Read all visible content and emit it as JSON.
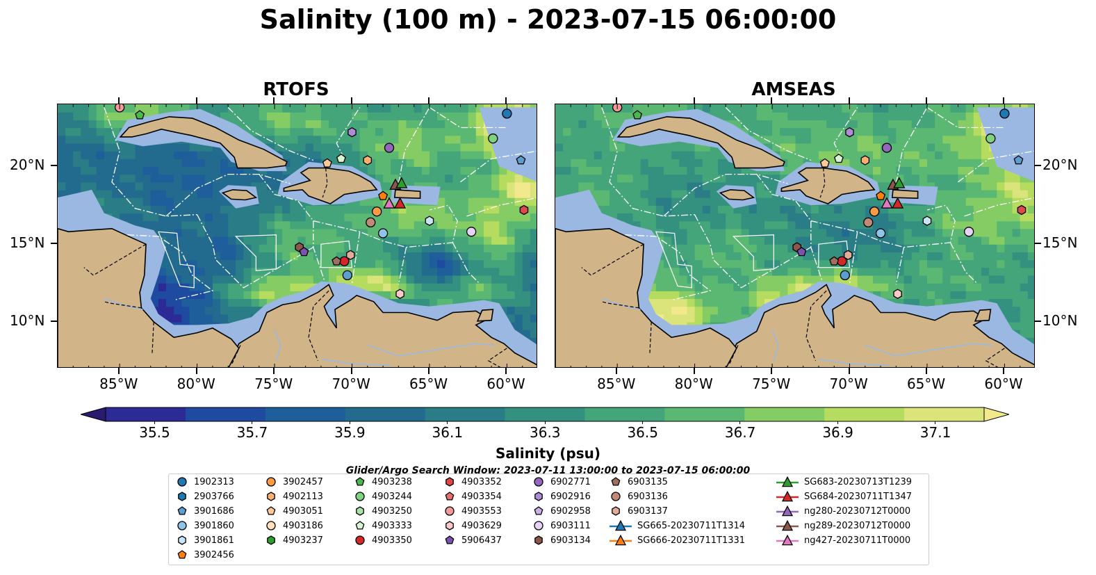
{
  "title": "Salinity (100 m) - 2023-07-15 06:00:00",
  "panels": [
    {
      "title": "RTOFS",
      "style": "rtofs"
    },
    {
      "title": "AMSEAS",
      "style": "amseas"
    }
  ],
  "axes": {
    "lon_ticks": [
      "85°W",
      "80°W",
      "75°W",
      "70°W",
      "65°W",
      "60°W"
    ],
    "lat_ticks": [
      "20°N",
      "15°N",
      "10°N"
    ],
    "lon_range": [
      -89,
      -58
    ],
    "lat_range": [
      7,
      24
    ]
  },
  "colorbar": {
    "label": "Salinity (psu)",
    "ticks": [
      "35.5",
      "35.7",
      "35.9",
      "36.1",
      "36.3",
      "36.5",
      "36.7",
      "36.9",
      "37.1"
    ],
    "range": [
      35.4,
      37.2
    ],
    "colors": [
      "#2a1b6e",
      "#2c2a94",
      "#1e4aa0",
      "#1e5e9a",
      "#236b8e",
      "#2a7d86",
      "#34907f",
      "#44a57a",
      "#5bb872",
      "#84cc63",
      "#b5dc5e",
      "#dae47a",
      "#f2e98c"
    ]
  },
  "legend": {
    "title": "Glider/Argo Search Window: 2023-07-11 13:00:00 to 2023-07-15 06:00:00",
    "columns": [
      [
        {
          "label": "1902313",
          "shape": "circle",
          "color": "#1f77b4"
        },
        {
          "label": "2903766",
          "shape": "hexagon",
          "color": "#1f77b4"
        },
        {
          "label": "3901686",
          "shape": "pentagon",
          "color": "#5a9fd0"
        },
        {
          "label": "3901860",
          "shape": "circle",
          "color": "#8ec3ea"
        },
        {
          "label": "3901861",
          "shape": "hexagon",
          "color": "#c8e4f7"
        },
        {
          "label": "3902456",
          "shape": "pentagon",
          "color": "#ff7f0e"
        }
      ],
      [
        {
          "label": "3902457",
          "shape": "circle",
          "color": "#ff9a45"
        },
        {
          "label": "4902113",
          "shape": "hexagon",
          "color": "#ffb070"
        },
        {
          "label": "4903051",
          "shape": "pentagon",
          "color": "#ffc898"
        },
        {
          "label": "4903186",
          "shape": "circle",
          "color": "#ffe0c0"
        },
        {
          "label": "4903237",
          "shape": "hexagon",
          "color": "#2ca02c"
        }
      ],
      [
        {
          "label": "4903238",
          "shape": "pentagon",
          "color": "#4cb84c"
        },
        {
          "label": "4903244",
          "shape": "circle",
          "color": "#7fd27f"
        },
        {
          "label": "4903250",
          "shape": "hexagon",
          "color": "#a8e4a8"
        },
        {
          "label": "4903333",
          "shape": "pentagon",
          "color": "#d6f5d0"
        },
        {
          "label": "4903350",
          "shape": "circle",
          "color": "#d62728"
        }
      ],
      [
        {
          "label": "4903352",
          "shape": "hexagon",
          "color": "#e04848"
        },
        {
          "label": "4903354",
          "shape": "pentagon",
          "color": "#ea6f6f"
        },
        {
          "label": "4903553",
          "shape": "circle",
          "color": "#f49a9a"
        },
        {
          "label": "4903629",
          "shape": "hexagon",
          "color": "#fcc8c8"
        },
        {
          "label": "5906437",
          "shape": "pentagon",
          "color": "#7b52b0"
        }
      ],
      [
        {
          "label": "6902771",
          "shape": "circle",
          "color": "#9467bd"
        },
        {
          "label": "6902916",
          "shape": "hexagon",
          "color": "#b08cd6"
        },
        {
          "label": "6902958",
          "shape": "pentagon",
          "color": "#cbb0e8"
        },
        {
          "label": "6903111",
          "shape": "circle",
          "color": "#e6d3f7"
        },
        {
          "label": "6903134",
          "shape": "hexagon",
          "color": "#8c564b"
        }
      ],
      [
        {
          "label": "6903135",
          "shape": "pentagon",
          "color": "#a0705f"
        },
        {
          "label": "6903136",
          "shape": "circle",
          "color": "#c08a78"
        },
        {
          "label": "6903137",
          "shape": "hexagon",
          "color": "#e2ad98"
        },
        {
          "label": "SG665-20230711T1314",
          "shape": "triangle-line",
          "color": "#1f77b4"
        },
        {
          "label": "SG666-20230711T1331",
          "shape": "triangle-line",
          "color": "#ff7f0e"
        }
      ],
      [
        {
          "label": "SG683-20230713T1239",
          "shape": "triangle-line",
          "color": "#2ca02c"
        },
        {
          "label": "SG684-20230711T1347",
          "shape": "triangle-line",
          "color": "#d62728"
        },
        {
          "label": "ng280-20230712T0000",
          "shape": "triangle-line",
          "color": "#9467bd"
        },
        {
          "label": "ng289-20230712T0000",
          "shape": "triangle-line",
          "color": "#8c564b"
        },
        {
          "label": "ng427-20230711T0000",
          "shape": "triangle-line",
          "color": "#e377c2"
        }
      ]
    ]
  },
  "observations": [
    {
      "lon": -85.0,
      "lat": 23.8,
      "shape": "circle",
      "color": "#f49a9a"
    },
    {
      "lon": -83.7,
      "lat": 23.3,
      "shape": "pentagon",
      "color": "#4cb84c"
    },
    {
      "lon": -60.0,
      "lat": 23.4,
      "shape": "circle",
      "color": "#1f77b4"
    },
    {
      "lon": -59.1,
      "lat": 20.4,
      "shape": "pentagon",
      "color": "#5a9fd0"
    },
    {
      "lon": -60.9,
      "lat": 21.8,
      "shape": "circle",
      "color": "#7fd27f"
    },
    {
      "lon": -70.0,
      "lat": 22.2,
      "shape": "hexagon",
      "color": "#b08cd6"
    },
    {
      "lon": -67.6,
      "lat": 21.2,
      "shape": "circle",
      "color": "#9467bd"
    },
    {
      "lon": -70.7,
      "lat": 20.5,
      "shape": "pentagon",
      "color": "#d6f5d0"
    },
    {
      "lon": -69.0,
      "lat": 20.4,
      "shape": "hexagon",
      "color": "#ffb070"
    },
    {
      "lon": -71.6,
      "lat": 20.2,
      "shape": "pentagon",
      "color": "#ffc898"
    },
    {
      "lon": -68.0,
      "lat": 18.1,
      "shape": "pentagon",
      "color": "#ff7f0e"
    },
    {
      "lon": -68.4,
      "lat": 17.1,
      "shape": "circle",
      "color": "#ff9a45"
    },
    {
      "lon": -67.2,
      "lat": 18.8,
      "shape": "triangle",
      "color": "#8c564b"
    },
    {
      "lon": -66.8,
      "lat": 18.9,
      "shape": "triangle",
      "color": "#2ca02c"
    },
    {
      "lon": -67.6,
      "lat": 17.6,
      "shape": "triangle",
      "color": "#e377c2"
    },
    {
      "lon": -66.9,
      "lat": 17.6,
      "shape": "triangle",
      "color": "#d62728"
    },
    {
      "lon": -65.0,
      "lat": 16.5,
      "shape": "hexagon",
      "color": "#c8e4f7"
    },
    {
      "lon": -68.8,
      "lat": 16.4,
      "shape": "circle",
      "color": "#c08a78"
    },
    {
      "lon": -68.0,
      "lat": 15.7,
      "shape": "circle",
      "color": "#8ec3ea"
    },
    {
      "lon": -58.9,
      "lat": 17.2,
      "shape": "hexagon",
      "color": "#e04848"
    },
    {
      "lon": -62.3,
      "lat": 15.8,
      "shape": "circle",
      "color": "#e6d3f7"
    },
    {
      "lon": -73.4,
      "lat": 14.8,
      "shape": "hexagon",
      "color": "#8c564b"
    },
    {
      "lon": -73.1,
      "lat": 14.5,
      "shape": "pentagon",
      "color": "#7b52b0"
    },
    {
      "lon": -70.1,
      "lat": 14.3,
      "shape": "hexagon",
      "color": "#e2ad98"
    },
    {
      "lon": -70.5,
      "lat": 13.9,
      "shape": "circle",
      "color": "#d62728"
    },
    {
      "lon": -71.0,
      "lat": 13.9,
      "shape": "pentagon",
      "color": "#a0705f"
    },
    {
      "lon": -70.3,
      "lat": 13.0,
      "shape": "circle",
      "color": "#5a9fd0"
    },
    {
      "lon": -66.9,
      "lat": 11.8,
      "shape": "hexagon",
      "color": "#fcc8c8"
    }
  ]
}
